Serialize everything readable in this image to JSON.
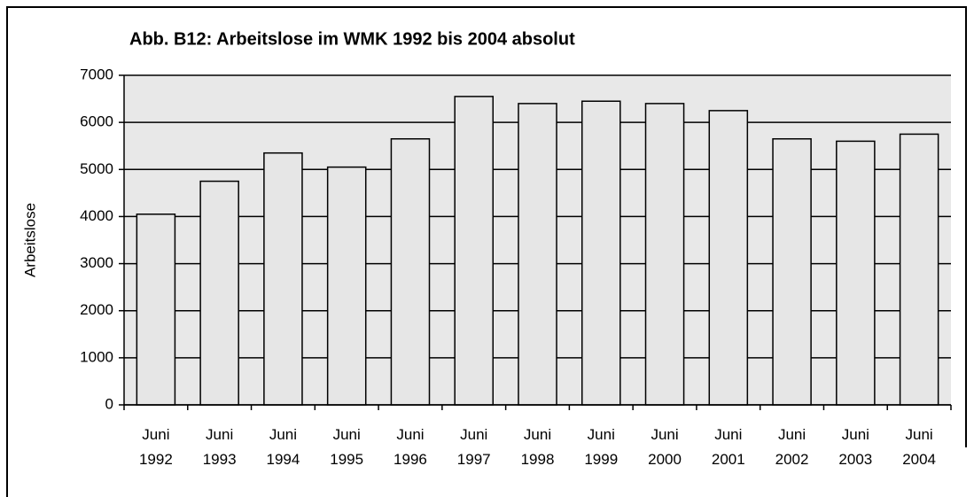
{
  "chart_data": {
    "type": "bar",
    "title": "Abb. B12: Arbeitslose im WMK 1992 bis 2004 absolut",
    "y_label": "Arbeitslose",
    "categories": [
      "Juni 1992",
      "Juni 1993",
      "Juni 1994",
      "Juni 1995",
      "Juni 1996",
      "Juni 1997",
      "Juni 1998",
      "Juni 1999",
      "Juni 2000",
      "Juni 2001",
      "Juni 2002",
      "Juni 2003",
      "Juni 2004"
    ],
    "values": [
      4050,
      4750,
      5350,
      5050,
      5650,
      6550,
      6400,
      6450,
      6400,
      6250,
      5650,
      5600,
      5750
    ],
    "color": "#e6e6e6",
    "ylim": [
      0,
      7000
    ],
    "yticks": [
      0,
      1000,
      2000,
      3000,
      4000,
      5000,
      6000,
      7000
    ],
    "grid": true
  }
}
